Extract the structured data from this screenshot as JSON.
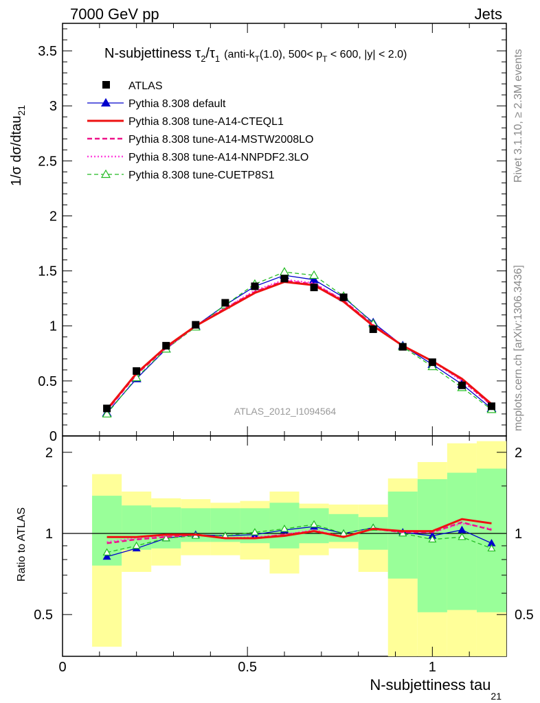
{
  "header": {
    "left": "7000 GeV pp",
    "right": "Jets"
  },
  "side_text": {
    "rivet": "Rivet 3.1.10, ≥ 2.3M events",
    "mcplots": "mcplots.cern.ch [arXiv:1306.3436]"
  },
  "chart_data": {
    "type": "scatter",
    "title_main": "N-subjettiness τ",
    "title_tau2_sub": "2",
    "title_slash_tau": "/τ",
    "title_tau1_sub": "1",
    "title_detail": "(anti-k",
    "title_kt_sub": "T",
    "title_detail2": "(1.0), 500< p",
    "title_pt_sub": "T",
    "title_detail3": " < 600, |y| < 2.0)",
    "analysis_tag": "ATLAS_2012_I1094564",
    "ylabel_main": "1/σ dσ/dtau",
    "ylabel_sub": "21",
    "ylabel_ratio": "Ratio to ATLAS",
    "xlabel_main": "N-subjettiness tau",
    "xlabel_sub": "21",
    "xlim": [
      0,
      1.2
    ],
    "ylim": [
      0,
      3.75
    ],
    "ratio_ylim": [
      0.35,
      2.3
    ],
    "x_ticks": [
      "0",
      "0.5",
      "1"
    ],
    "y_ticks": [
      "0",
      "0.5",
      "1",
      "1.5",
      "2",
      "2.5",
      "3",
      "3.5"
    ],
    "ratio_ticks": [
      "0.5",
      "1",
      "2"
    ],
    "x": [
      0.12,
      0.2,
      0.28,
      0.36,
      0.44,
      0.52,
      0.6,
      0.68,
      0.76,
      0.84,
      0.92,
      1.0,
      1.08,
      1.16
    ],
    "band_edges": [
      0.08,
      0.16,
      0.24,
      0.32,
      0.4,
      0.48,
      0.56,
      0.64,
      0.72,
      0.8,
      0.88,
      0.96,
      1.04,
      1.12,
      1.2
    ],
    "band_inner": [
      [
        0.76,
        1.38
      ],
      [
        0.87,
        1.27
      ],
      [
        0.88,
        1.25
      ],
      [
        0.93,
        1.24
      ],
      [
        0.93,
        1.24
      ],
      [
        0.92,
        1.24
      ],
      [
        0.88,
        1.3
      ],
      [
        0.92,
        1.24
      ],
      [
        0.93,
        1.18
      ],
      [
        0.87,
        1.15
      ],
      [
        0.68,
        1.43
      ],
      [
        0.51,
        1.59
      ],
      [
        0.52,
        1.68
      ],
      [
        0.51,
        1.74
      ]
    ],
    "band_outer": [
      [
        0.38,
        1.66
      ],
      [
        0.72,
        1.43
      ],
      [
        0.76,
        1.35
      ],
      [
        0.83,
        1.34
      ],
      [
        0.83,
        1.3
      ],
      [
        0.8,
        1.32
      ],
      [
        0.71,
        1.43
      ],
      [
        0.83,
        1.29
      ],
      [
        0.88,
        1.28
      ],
      [
        0.72,
        1.28
      ],
      [
        0.35,
        1.6
      ],
      [
        0.35,
        1.84
      ],
      [
        0.35,
        2.16
      ],
      [
        0.35,
        2.2
      ]
    ],
    "series": [
      {
        "name": "ATLAS",
        "color": "#000000",
        "style": "data",
        "values": [
          0.25,
          0.59,
          0.82,
          1.01,
          1.21,
          1.36,
          1.43,
          1.35,
          1.26,
          0.97,
          0.81,
          0.67,
          0.46,
          0.27
        ]
      },
      {
        "name": "Pythia 8.308 default",
        "color": "#0000cc",
        "style": "solid-thin",
        "marker": "triangle-filled",
        "values": [
          0.21,
          0.52,
          0.79,
          1.0,
          1.19,
          1.36,
          1.46,
          1.42,
          1.26,
          1.03,
          0.82,
          0.65,
          0.47,
          0.25
        ]
      },
      {
        "name": "Pythia 8.308 tune-A14-CTEQL1",
        "color": "#ee1111",
        "style": "solid-thick",
        "values": [
          0.24,
          0.57,
          0.81,
          1.0,
          1.15,
          1.3,
          1.4,
          1.37,
          1.22,
          1.0,
          0.82,
          0.68,
          0.52,
          0.29
        ]
      },
      {
        "name": "Pythia 8.308 tune-A14-MSTW2008LO",
        "color": "#ee1188",
        "style": "dashed",
        "values": [
          0.23,
          0.56,
          0.8,
          1.0,
          1.16,
          1.31,
          1.41,
          1.38,
          1.23,
          1.01,
          0.82,
          0.68,
          0.51,
          0.28
        ]
      },
      {
        "name": "Pythia 8.308 tune-A14-NNPDF2.3LO",
        "color": "#ff44dd",
        "style": "dotted",
        "values": [
          0.23,
          0.57,
          0.8,
          1.0,
          1.16,
          1.32,
          1.42,
          1.39,
          1.23,
          1.01,
          0.82,
          0.68,
          0.5,
          0.28
        ]
      },
      {
        "name": "Pythia 8.308 tune-CUETP8S1",
        "color": "#22bb22",
        "style": "dashed-thin",
        "marker": "triangle-open",
        "values": [
          0.2,
          0.53,
          0.79,
          0.99,
          1.19,
          1.38,
          1.49,
          1.46,
          1.27,
          1.02,
          0.81,
          0.63,
          0.44,
          0.24
        ]
      }
    ],
    "ratio_series": [
      {
        "name": "Pythia 8.308 default",
        "values": [
          0.82,
          0.88,
          0.96,
          0.99,
          0.98,
          0.99,
          1.03,
          1.06,
          1.0,
          1.05,
          1.01,
          0.98,
          1.03,
          0.92
        ]
      },
      {
        "name": "Pythia 8.308 tune-A14-CTEQL1",
        "values": [
          0.97,
          0.97,
          0.99,
          0.99,
          0.96,
          0.96,
          0.98,
          1.02,
          0.97,
          1.04,
          1.02,
          1.02,
          1.13,
          1.09
        ]
      },
      {
        "name": "Pythia 8.308 tune-A14-MSTW2008LO",
        "values": [
          0.92,
          0.95,
          0.97,
          0.99,
          0.96,
          0.96,
          0.99,
          1.02,
          0.97,
          1.04,
          1.01,
          1.01,
          1.1,
          1.03
        ]
      },
      {
        "name": "Pythia 8.308 tune-A14-NNPDF2.3LO",
        "values": [
          0.93,
          0.96,
          0.98,
          0.99,
          0.96,
          0.97,
          0.99,
          1.03,
          0.97,
          1.04,
          1.01,
          1.01,
          1.09,
          1.04
        ]
      },
      {
        "name": "Pythia 8.308 tune-CUETP8S1",
        "values": [
          0.85,
          0.9,
          0.96,
          0.98,
          0.98,
          1.01,
          1.04,
          1.08,
          1.0,
          1.05,
          1.0,
          0.95,
          0.97,
          0.88
        ]
      }
    ],
    "band_colors": {
      "inner": "#99ff99",
      "outer": "#ffff99"
    }
  }
}
